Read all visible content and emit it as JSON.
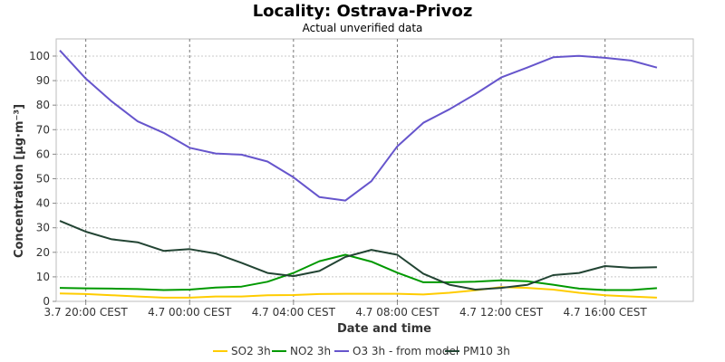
{
  "chart_data": {
    "type": "line",
    "title": "Locality: Ostrava-Privoz",
    "subtitle": "Actual unverified data",
    "xlabel": "Date and time",
    "ylabel": "Concentration [µg·m⁻³]",
    "ylim": [
      0,
      107
    ],
    "yticks": [
      0,
      10,
      20,
      30,
      40,
      50,
      60,
      70,
      80,
      90,
      100
    ],
    "x": [
      "3.7 19:00 CEST",
      "3.7 20:00 CEST",
      "3.7 21:00 CEST",
      "3.7 22:00 CEST",
      "3.7 23:00 CEST",
      "4.7 00:00 CEST",
      "4.7 01:00 CEST",
      "4.7 02:00 CEST",
      "4.7 03:00 CEST",
      "4.7 04:00 CEST",
      "4.7 05:00 CEST",
      "4.7 06:00 CEST",
      "4.7 07:00 CEST",
      "4.7 08:00 CEST",
      "4.7 09:00 CEST",
      "4.7 10:00 CEST",
      "4.7 11:00 CEST",
      "4.7 12:00 CEST",
      "4.7 13:00 CEST",
      "4.7 14:00 CEST",
      "4.7 15:00 CEST",
      "4.7 16:00 CEST",
      "4.7 17:00 CEST",
      "4.7 18:00 CEST"
    ],
    "xtick_labels": [
      "3.7 20:00 CEST",
      "4.7 00:00 CEST",
      "4.7 04:00 CEST",
      "4.7 08:00 CEST",
      "4.7 12:00 CEST",
      "4.7 16:00 CEST"
    ],
    "xtick_indices": [
      1,
      5,
      9,
      13,
      17,
      21
    ],
    "grid": true,
    "legend_position": "bottom",
    "series": [
      {
        "name": "SO2 3h",
        "color": "#ffcc00",
        "values": [
          3.2,
          3.0,
          2.5,
          2.0,
          1.5,
          1.5,
          2.0,
          2.0,
          2.5,
          2.6,
          3.0,
          3.1,
          3.1,
          3.1,
          2.8,
          3.5,
          4.5,
          5.8,
          5.5,
          4.8,
          3.5,
          2.5,
          2.0,
          1.5
        ]
      },
      {
        "name": "NO2 3h",
        "color": "#009900",
        "values": [
          5.5,
          5.3,
          5.2,
          5.0,
          4.6,
          4.8,
          5.6,
          6.0,
          8.0,
          11.6,
          16.4,
          19.0,
          16.2,
          11.7,
          7.8,
          7.8,
          8.0,
          8.6,
          8.2,
          6.8,
          5.2,
          4.6,
          4.6,
          5.4
        ]
      },
      {
        "name": "O3 3h - from model",
        "color": "#6655cc",
        "values": [
          102.3,
          90.8,
          81.5,
          73.4,
          68.7,
          62.6,
          60.3,
          59.8,
          57.0,
          50.6,
          42.5,
          41.1,
          49.0,
          63.2,
          72.8,
          78.3,
          84.5,
          91.3,
          95.3,
          99.5,
          100.1,
          99.3,
          98.2,
          95.3
        ]
      },
      {
        "name": "PM10 3h",
        "color": "#224433",
        "values": [
          32.8,
          28.4,
          25.3,
          24.1,
          20.6,
          21.3,
          19.5,
          15.7,
          11.6,
          10.3,
          12.4,
          18.1,
          21.0,
          19.0,
          11.3,
          6.8,
          4.8,
          5.5,
          6.7,
          10.7,
          11.6,
          14.4,
          13.7,
          13.9
        ]
      }
    ]
  }
}
